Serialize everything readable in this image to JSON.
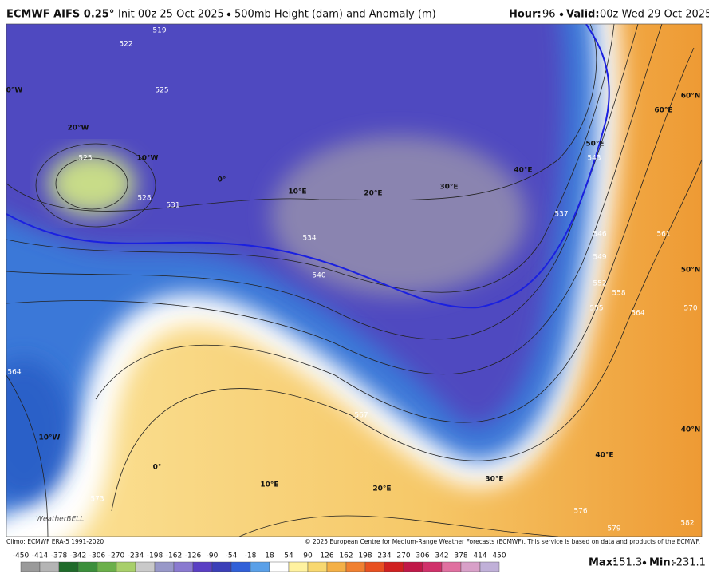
{
  "header": {
    "title": "ECMWF AIFS 0.25°",
    "init": "Init 00z 25 Oct 2025",
    "product": "500mb Height (dam) and Anomaly (m)",
    "hour_label": "Hour:",
    "hour": "96",
    "valid_label": "Valid:",
    "valid": "00z Wed 29 Oct 2025"
  },
  "map": {
    "contour_labels": [
      "519",
      "522",
      "525",
      "525",
      "528",
      "531",
      "534",
      "540",
      "537",
      "543",
      "546",
      "549",
      "552",
      "555",
      "558",
      "561",
      "564",
      "564",
      "567",
      "570",
      "573",
      "576",
      "579",
      "582"
    ],
    "grid_labels": [
      "0°W",
      "20°W",
      "10°W",
      "0°",
      "10°E",
      "20°E",
      "30°E",
      "40°E",
      "50°E",
      "60°E",
      "60°N",
      "50°N",
      "40°N",
      "10°W",
      "0°",
      "10°E",
      "20°E",
      "30°E",
      "40°E"
    ],
    "watermark": "WeatherBELL"
  },
  "footer": {
    "climo": "Climo: ECMWF ERA-5 1991-2020",
    "copyright": "© 2025 European Centre for Medium-Range Weather Forecasts (ECMWF). This service is based on data and products of the ECMWF.",
    "colorbar": {
      "ticks": [
        -450,
        -414,
        -378,
        -342,
        -306,
        -270,
        -234,
        -198,
        -162,
        -126,
        -90,
        -54,
        -18,
        18,
        54,
        90,
        126,
        162,
        198,
        234,
        270,
        306,
        342,
        378,
        414,
        450
      ],
      "colors": [
        "#9a9a9a",
        "#b4b4b4",
        "#1f6b2a",
        "#3b8f3b",
        "#6bb04a",
        "#a8cf6a",
        "#c9c9c9",
        "#9898c8",
        "#8a7ad0",
        "#5a3fc4",
        "#3b3fb8",
        "#3060d8",
        "#5aa0e8",
        "#ffffff",
        "#fff2a0",
        "#f8d870",
        "#f4b046",
        "#f08030",
        "#e85020",
        "#d02020",
        "#c01848",
        "#d0306a",
        "#e070a0",
        "#d8a0c8",
        "#c0b0d8"
      ]
    },
    "max_label": "Max:",
    "max": 151.3,
    "min_label": "Min:",
    "min": -231.1
  }
}
